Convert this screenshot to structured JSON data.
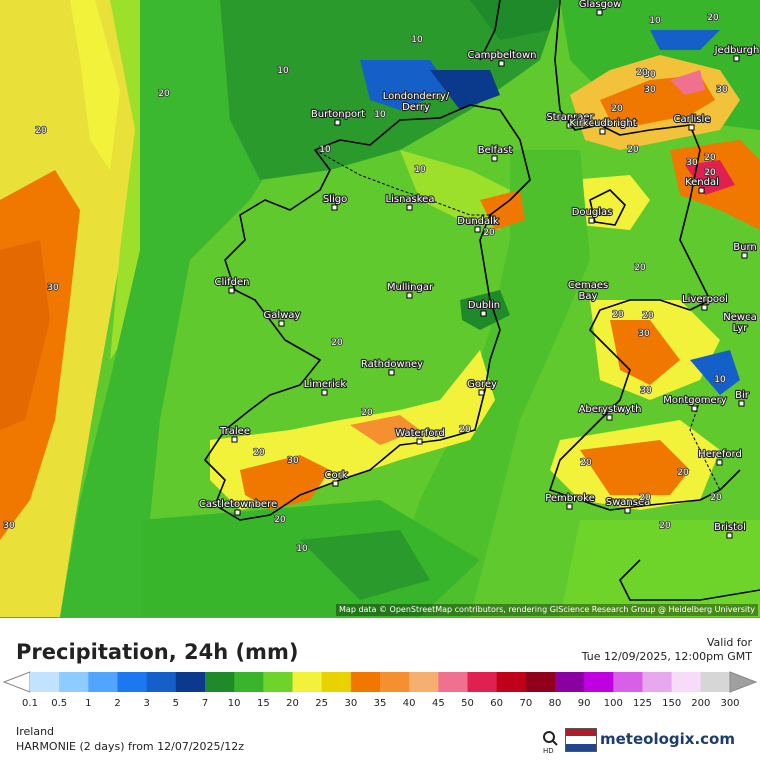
{
  "map": {
    "attribution": "Map data © OpenStreetMap contributors, rendering GIScience Research Group @ Heidelberg University",
    "cities": [
      {
        "name": "Glasgow"
      },
      {
        "name": "Campbeltown"
      },
      {
        "name": "Jedburgh"
      },
      {
        "name": "Burtonport"
      },
      {
        "name": "Londonderry/ Derry"
      },
      {
        "name": "Stranraer"
      },
      {
        "name": "Kirkcudbright"
      },
      {
        "name": "Carlisle"
      },
      {
        "name": "Belfast"
      },
      {
        "name": "Kendal"
      },
      {
        "name": "Sligo"
      },
      {
        "name": "Lisnaskea"
      },
      {
        "name": "Douglas"
      },
      {
        "name": "Dundalk"
      },
      {
        "name": "Clifden"
      },
      {
        "name": "Mullingar"
      },
      {
        "name": "Cemaes Bay"
      },
      {
        "name": "Liverpool"
      },
      {
        "name": "Dublin"
      },
      {
        "name": "Galway"
      },
      {
        "name": "Rathdowney"
      },
      {
        "name": "Newca Lyr"
      },
      {
        "name": "Limerick"
      },
      {
        "name": "Gorey"
      },
      {
        "name": "Montgomery"
      },
      {
        "name": "Aberystwyth"
      },
      {
        "name": "Bir"
      },
      {
        "name": "Tralee"
      },
      {
        "name": "Waterford"
      },
      {
        "name": "Hereford"
      },
      {
        "name": "Cork"
      },
      {
        "name": "Pembroke"
      },
      {
        "name": "Swansea"
      },
      {
        "name": "Castletownbere"
      },
      {
        "name": "Bristol"
      },
      {
        "name": "Burn"
      }
    ],
    "contour_labels": [
      "10",
      "10",
      "10",
      "20",
      "20",
      "10",
      "10",
      "10",
      "20",
      "30",
      "20",
      "30",
      "20",
      "30",
      "20",
      "20",
      "20",
      "30",
      "20",
      "20",
      "20",
      "20",
      "30",
      "30",
      "20",
      "20",
      "20",
      "20",
      "20",
      "10",
      "30",
      "20",
      "20",
      "20",
      "10",
      "30",
      "20",
      "20",
      "30"
    ]
  },
  "legend": {
    "title": "Precipitation, 24h (mm)",
    "valid_label": "Valid for",
    "valid_time": "Tue 12/09/2025, 12:00pm GMT",
    "colors": [
      "#c2e3ff",
      "#8ecbff",
      "#4fa5ff",
      "#1b78f0",
      "#1460c8",
      "#0b3a8c",
      "#1f8a2a",
      "#38b52a",
      "#6ed42a",
      "#f2f23a",
      "#e8d200",
      "#f07800",
      "#f59030",
      "#f5b070",
      "#f07090",
      "#e02050",
      "#c00018",
      "#90001a",
      "#8a00a0",
      "#c000e0",
      "#d860e8",
      "#e8a8f0",
      "#f6dcf8",
      "#d6d6d6"
    ],
    "ticks": [
      "0.1",
      "0.5",
      "1",
      "2",
      "3",
      "5",
      "7",
      "10",
      "15",
      "20",
      "25",
      "30",
      "35",
      "40",
      "45",
      "50",
      "60",
      "70",
      "80",
      "90",
      "100",
      "125",
      "150",
      "200",
      "300"
    ],
    "region": "Ireland",
    "model": "HARMONIE (2 days) from 12/07/2025/12z",
    "brand": "meteologix.com",
    "flag_colors": [
      "#ae1c28",
      "#ffffff",
      "#21468b"
    ]
  }
}
